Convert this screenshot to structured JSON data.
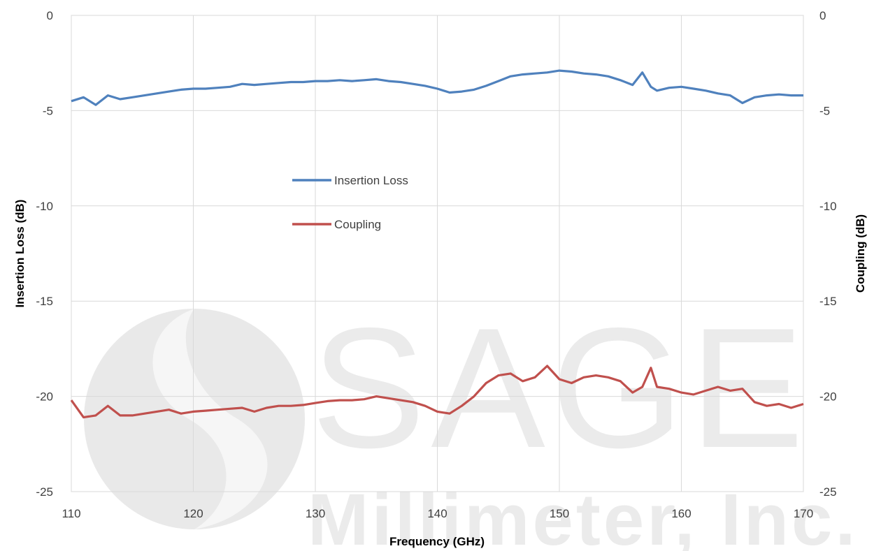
{
  "watermark": {
    "line1": "SAGE",
    "line2": "Millimeter, Inc."
  },
  "chart_data": {
    "type": "line",
    "title": "",
    "xlabel": "Frequency (GHz)",
    "ylabel_left": "Insertion Loss (dB)",
    "ylabel_right": "Coupling (dB)",
    "xlim": [
      110,
      170
    ],
    "ylim": [
      -25,
      0
    ],
    "x_ticks": [
      110,
      120,
      130,
      140,
      150,
      160,
      170
    ],
    "y_ticks": [
      0,
      -5,
      -10,
      -15,
      -20,
      -25
    ],
    "grid": true,
    "legend_position": "center-left",
    "x": [
      110,
      111,
      112,
      113,
      114,
      115,
      116,
      117,
      118,
      119,
      120,
      121,
      122,
      123,
      124,
      125,
      126,
      127,
      128,
      129,
      130,
      131,
      132,
      133,
      134,
      135,
      136,
      137,
      138,
      139,
      140,
      141,
      142,
      143,
      144,
      145,
      146,
      147,
      148,
      149,
      150,
      151,
      152,
      153,
      154,
      155,
      156,
      156.8,
      157.5,
      158,
      159,
      160,
      161,
      162,
      163,
      164,
      165,
      166,
      167,
      168,
      169,
      170
    ],
    "series": [
      {
        "name": "Insertion Loss",
        "color": "#4f81bd",
        "values": [
          -4.5,
          -4.3,
          -4.7,
          -4.2,
          -4.4,
          -4.3,
          -4.2,
          -4.1,
          -4.0,
          -3.9,
          -3.85,
          -3.85,
          -3.8,
          -3.75,
          -3.6,
          -3.65,
          -3.6,
          -3.55,
          -3.5,
          -3.5,
          -3.45,
          -3.45,
          -3.4,
          -3.45,
          -3.4,
          -3.35,
          -3.45,
          -3.5,
          -3.6,
          -3.7,
          -3.85,
          -4.05,
          -4.0,
          -3.9,
          -3.7,
          -3.45,
          -3.2,
          -3.1,
          -3.05,
          -3.0,
          -2.9,
          -2.95,
          -3.05,
          -3.1,
          -3.2,
          -3.4,
          -3.65,
          -3.0,
          -3.75,
          -3.95,
          -3.8,
          -3.75,
          -3.85,
          -3.95,
          -4.1,
          -4.2,
          -4.6,
          -4.3,
          -4.2,
          -4.15,
          -4.2,
          -4.2
        ]
      },
      {
        "name": "Coupling",
        "color": "#c0504d",
        "values": [
          -20.2,
          -21.1,
          -21.0,
          -20.5,
          -21.0,
          -21.0,
          -20.9,
          -20.8,
          -20.7,
          -20.9,
          -20.8,
          -20.75,
          -20.7,
          -20.65,
          -20.6,
          -20.8,
          -20.6,
          -20.5,
          -20.5,
          -20.45,
          -20.35,
          -20.25,
          -20.2,
          -20.2,
          -20.15,
          -20.0,
          -20.1,
          -20.2,
          -20.3,
          -20.5,
          -20.8,
          -20.9,
          -20.5,
          -20.0,
          -19.3,
          -18.9,
          -18.8,
          -19.2,
          -19.0,
          -18.4,
          -19.1,
          -19.3,
          -19.0,
          -18.9,
          -19.0,
          -19.2,
          -19.8,
          -19.5,
          -18.5,
          -19.5,
          -19.6,
          -19.8,
          -19.9,
          -19.7,
          -19.5,
          -19.7,
          -19.6,
          -20.3,
          -20.5,
          -20.4,
          -20.6,
          -20.4
        ]
      }
    ]
  }
}
